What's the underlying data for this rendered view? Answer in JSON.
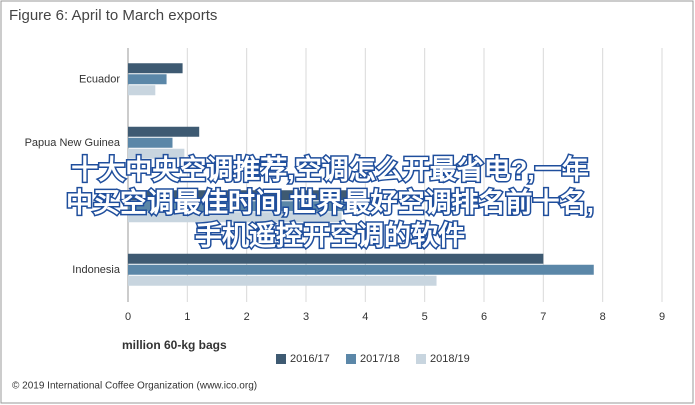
{
  "chart_data": {
    "type": "hbar",
    "title": "Figure 6: April to March exports",
    "categories": [
      "Ecuador",
      "Papua New Guinea",
      null,
      "Indonesia"
    ],
    "series": [
      {
        "name": "2016/17",
        "color": "#3e5a72",
        "values": [
          0.92,
          1.2,
          4.0,
          7.0
        ]
      },
      {
        "name": "2017/18",
        "color": "#5b87a8",
        "values": [
          0.65,
          0.75,
          3.8,
          7.85
        ]
      },
      {
        "name": "2018/19",
        "color": "#c8d5df",
        "values": [
          0.46,
          0.95,
          3.6,
          5.2
        ]
      }
    ],
    "xlim": [
      0,
      9
    ],
    "xticks": [
      0,
      1,
      2,
      3,
      4,
      5,
      6,
      7,
      8,
      9
    ],
    "grid": true,
    "xlabel": "million 60-kg bags",
    "source": "© 2019 International Coffee Organization (www.ico.org)"
  },
  "overlay_text": [
    "十大中央空调推荐,空调怎么开最省电?,一年",
    "中买空调最佳时间,世界最好空调排名前十名,",
    "手机遥控开空调的软件"
  ]
}
